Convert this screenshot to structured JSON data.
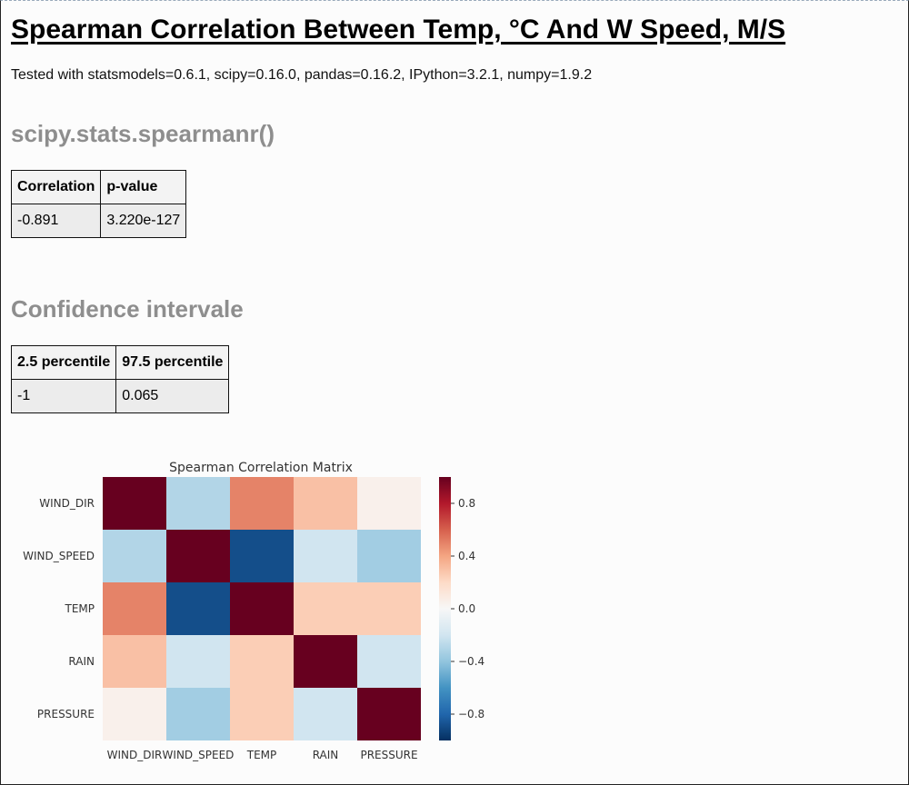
{
  "header": {
    "title": "Spearman Correlation Between Temp, °C And W Speed, M/S",
    "versions": "Tested with statsmodels=0.6.1, scipy=0.16.0, pandas=0.16.2, IPython=3.2.1, numpy=1.9.2"
  },
  "spearman": {
    "heading": "scipy.stats.spearmanr()",
    "columns": [
      "Correlation",
      "p-value"
    ],
    "row": [
      "-0.891",
      "3.220e-127"
    ]
  },
  "confidence": {
    "heading": "Confidence intervale",
    "columns": [
      "2.5 percentile",
      "97.5 percentile"
    ],
    "row": [
      "-1",
      "0.065"
    ]
  },
  "chart_data": {
    "type": "heatmap",
    "title": "Spearman Correlation Matrix",
    "rows": [
      "WIND_DIR",
      "WIND_SPEED",
      "TEMP",
      "RAIN",
      "PRESSURE"
    ],
    "columns": [
      "WIND_DIR",
      "WIND_SPEED",
      "TEMP",
      "RAIN",
      "PRESSURE"
    ],
    "values": [
      [
        1.0,
        -0.3,
        0.5,
        0.3,
        0.05
      ],
      [
        -0.3,
        1.0,
        -0.89,
        -0.2,
        -0.35
      ],
      [
        0.5,
        -0.89,
        1.0,
        0.25,
        0.25
      ],
      [
        0.3,
        -0.2,
        0.25,
        1.0,
        -0.2
      ],
      [
        0.05,
        -0.35,
        0.25,
        -0.2,
        1.0
      ]
    ],
    "colorbar_ticks": [
      "0.8",
      "0.4",
      "0.0",
      "−0.4",
      "−0.8"
    ],
    "colorbar_tick_values": [
      0.8,
      0.4,
      0.0,
      -0.4,
      -0.8
    ],
    "vmin": -1,
    "vmax": 1,
    "colormap": [
      "#053061",
      "#2166ac",
      "#4393c3",
      "#92c5de",
      "#d1e5f0",
      "#f7f7f7",
      "#fddbc7",
      "#f4a582",
      "#d6604d",
      "#b2182b",
      "#67001f"
    ]
  }
}
